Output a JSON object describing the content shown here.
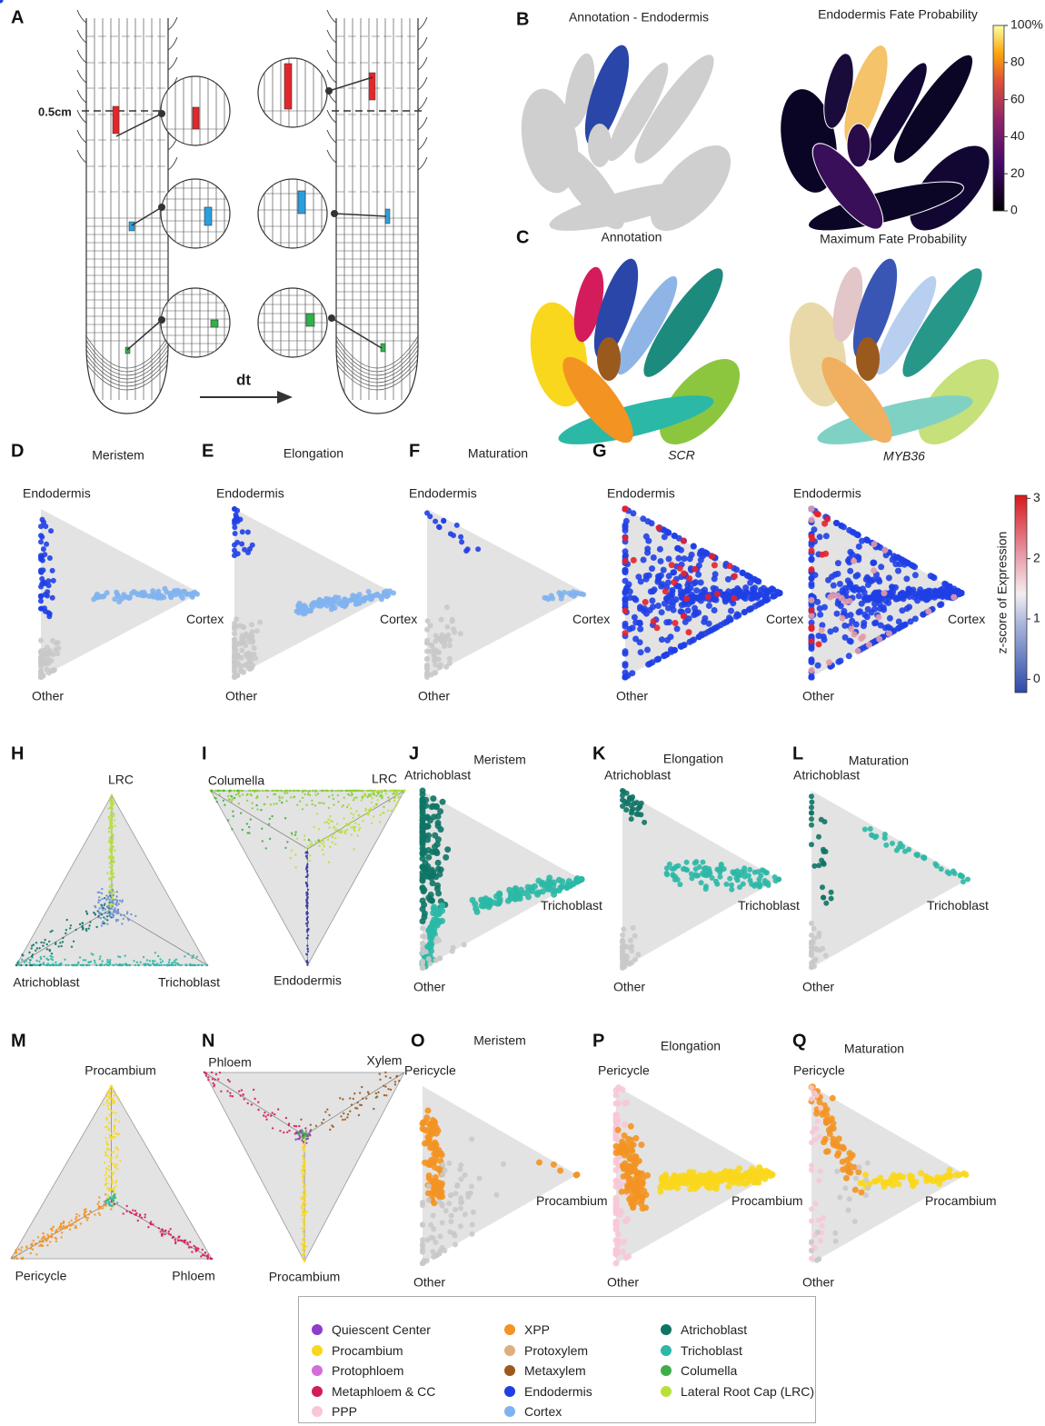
{
  "panel_a": {
    "letter": "A",
    "scale_label": "0.5cm",
    "time_label": "dt"
  },
  "panel_b": {
    "letter": "B",
    "titles": [
      "Annotation - Endodermis",
      "Endodermis Fate Probability"
    ],
    "colorbar": {
      "lim": [
        0,
        100
      ],
      "ticks": [
        0,
        20,
        40,
        60,
        80,
        {
          "value": 100,
          "label": "100%"
        }
      ]
    }
  },
  "panel_c": {
    "letter": "C",
    "titles": [
      "Annotation",
      "Maximum Fate Probability"
    ]
  },
  "ternary": [
    {
      "letter": "D",
      "title": "Meristem",
      "labels": [
        "Endodermis",
        "Cortex",
        "Other"
      ],
      "shape": "right"
    },
    {
      "letter": "E",
      "title": "Elongation",
      "labels": [
        "Endodermis",
        "Cortex",
        "Other"
      ],
      "shape": "right"
    },
    {
      "letter": "F",
      "title": "Maturation",
      "labels": [
        "Endodermis",
        "Cortex",
        "Other"
      ],
      "shape": "right"
    },
    {
      "letter": "G",
      "title": "SCR",
      "title_style": "italic",
      "labels": [
        "Endodermis",
        "Cortex",
        "Other"
      ],
      "shape": "right"
    },
    {
      "title": "MYB36",
      "title_style": "italic",
      "labels": [
        "Endodermis",
        "Cortex",
        "Other"
      ],
      "shape": "right"
    },
    {
      "letter": "H",
      "labels": [
        "LRC",
        "Atrichoblast",
        "Trichoblast"
      ],
      "shape": "up"
    },
    {
      "letter": "I",
      "labels": [
        "Columella",
        "LRC",
        "Endodermis"
      ],
      "shape": "down"
    },
    {
      "letter": "J",
      "title": "Meristem",
      "labels": [
        "Atrichoblast",
        "Trichoblast",
        "Other"
      ],
      "shape": "right"
    },
    {
      "letter": "K",
      "title": "Elongation",
      "labels": [
        "Atrichoblast",
        "Trichoblast",
        "Other"
      ],
      "shape": "right"
    },
    {
      "letter": "L",
      "title": "Maturation",
      "labels": [
        "Atrichoblast",
        "Trichoblast",
        "Other"
      ],
      "shape": "right"
    },
    {
      "letter": "M",
      "labels": [
        "Procambium",
        "Pericycle",
        "Phloem"
      ],
      "shape": "up"
    },
    {
      "letter": "N",
      "labels": [
        "Phloem",
        "Xylem",
        "Procambium"
      ],
      "shape": "down"
    },
    {
      "letter": "O",
      "title": "Meristem",
      "labels": [
        "Pericycle",
        "Procambium",
        "Other"
      ],
      "shape": "right"
    },
    {
      "letter": "P",
      "title": "Elongation",
      "labels": [
        "Pericycle",
        "Procambium",
        "Other"
      ],
      "shape": "right"
    },
    {
      "letter": "Q",
      "title": "Maturation",
      "labels": [
        "Pericycle",
        "Procambium",
        "Other"
      ],
      "shape": "right"
    }
  ],
  "zscore_colorbar": {
    "label": "z-score of Expression",
    "lim": [
      -0.22,
      3.05
    ],
    "ticks": [
      0,
      1,
      2,
      3
    ]
  },
  "legend": [
    {
      "name": "Quiescent Center",
      "color": "#8e3ccb"
    },
    {
      "name": "Procambium",
      "color": "#f9d71c"
    },
    {
      "name": "Protophloem",
      "color": "#d36fd8"
    },
    {
      "name": "Metaphloem & CC",
      "color": "#d41c5c"
    },
    {
      "name": "PPP",
      "color": "#f8c6d6"
    },
    {
      "name": "XPP",
      "color": "#f39322"
    },
    {
      "name": "Protoxylem",
      "color": "#deae7e"
    },
    {
      "name": "Metaxylem",
      "color": "#9a5a1e"
    },
    {
      "name": "Endodermis",
      "color": "#1f3fe6"
    },
    {
      "name": "Cortex",
      "color": "#7fb2f0"
    },
    {
      "name": "Atrichoblast",
      "color": "#0e7465"
    },
    {
      "name": "Trichoblast",
      "color": "#2bb8a6"
    },
    {
      "name": "Columella",
      "color": "#3fae4a"
    },
    {
      "name": "Lateral Root Cap (LRC)",
      "color": "#b8e03c"
    }
  ]
}
